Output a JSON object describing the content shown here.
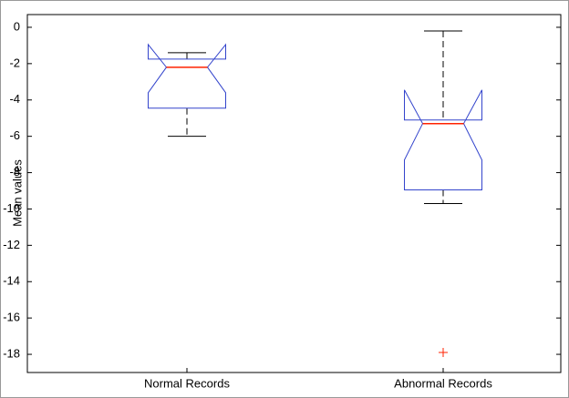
{
  "chart_data": {
    "type": "box",
    "ylabel": "Mean values",
    "categories": [
      "Normal Records",
      "Abnormal Records"
    ],
    "boxes": [
      {
        "min": -6,
        "q1": -4.45,
        "notch_low": -3.6,
        "median": -2.2,
        "notch_high": -0.95,
        "q3": -1.75,
        "max": -1.4,
        "outliers": []
      },
      {
        "min": -9.7,
        "q1": -8.95,
        "notch_low": -7.3,
        "median": -5.3,
        "notch_high": -3.45,
        "q3": -5.1,
        "max": -0.2,
        "outliers": [
          -17.9
        ]
      }
    ],
    "box_color": "#3344cc",
    "median_color": "#ff2200",
    "whisker_color": "#000000",
    "outlier_color": "#ff2200",
    "ylim": [
      -19,
      0.7
    ],
    "yticks": [
      -18,
      -16,
      -14,
      -12,
      -10,
      -8,
      -6,
      -4,
      -2,
      0
    ]
  }
}
